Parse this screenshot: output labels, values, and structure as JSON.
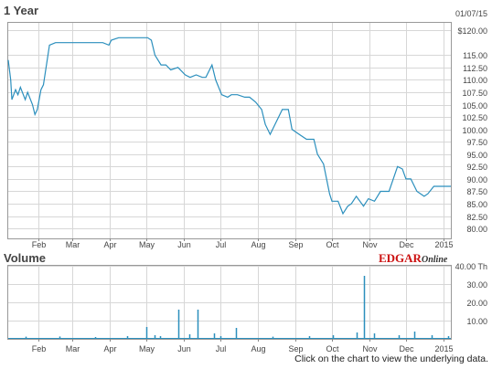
{
  "colors": {
    "line": "#2b8fbd",
    "grid": "#d7d7d7",
    "axis": "#888888",
    "text": "#444444",
    "brand": "#cc1111",
    "brand_dark": "#333333"
  },
  "footer_text": "Click on the chart to view the underlying data.",
  "brand": {
    "prefix": "EDGAR",
    "suffix": "Online"
  },
  "chart_data": [
    {
      "type": "line",
      "title": "1 Year",
      "date_label": "01/07/15",
      "x_tick_labels": [
        "Feb",
        "Mar",
        "Apr",
        "May",
        "Jun",
        "Jul",
        "Aug",
        "Sep",
        "Oct",
        "Nov",
        "Dec",
        "2015"
      ],
      "y_tick_labels": [
        "$120.00",
        "115.00",
        "112.50",
        "110.00",
        "107.50",
        "105.00",
        "102.50",
        "100.00",
        "97.50",
        "95.00",
        "92.50",
        "90.00",
        "87.50",
        "85.00",
        "82.50",
        "80.00"
      ],
      "y_ticks": [
        120,
        115,
        112.5,
        110,
        107.5,
        105,
        102.5,
        100,
        97.5,
        95,
        92.5,
        90,
        87.5,
        85,
        82.5,
        80
      ],
      "ylim": [
        78,
        121.5
      ],
      "grid": true,
      "series": [
        {
          "x": [
            "2014-01-07",
            "2014-01-09",
            "2014-01-10",
            "2014-01-13",
            "2014-01-15",
            "2014-01-17",
            "2014-01-21",
            "2014-01-23",
            "2014-01-27",
            "2014-01-29",
            "2014-01-31",
            "2014-02-03",
            "2014-02-05",
            "2014-02-10",
            "2014-02-15",
            "2014-02-20",
            "2014-02-26",
            "2014-03-05",
            "2014-03-12",
            "2014-03-19",
            "2014-03-26",
            "2014-03-31",
            "2014-04-02",
            "2014-04-08",
            "2014-04-14",
            "2014-04-21",
            "2014-04-28",
            "2014-05-02",
            "2014-05-05",
            "2014-05-08",
            "2014-05-13",
            "2014-05-17",
            "2014-05-21",
            "2014-05-27",
            "2014-06-02",
            "2014-06-06",
            "2014-06-11",
            "2014-06-16",
            "2014-06-19",
            "2014-06-24",
            "2014-06-27",
            "2014-07-02",
            "2014-07-07",
            "2014-07-10",
            "2014-07-15",
            "2014-07-21",
            "2014-07-25",
            "2014-07-30",
            "2014-08-04",
            "2014-08-07",
            "2014-08-11",
            "2014-08-15",
            "2014-08-21",
            "2014-08-26",
            "2014-08-29",
            "2014-09-04",
            "2014-09-10",
            "2014-09-16",
            "2014-09-19",
            "2014-09-24",
            "2014-09-29",
            "2014-10-01",
            "2014-10-06",
            "2014-10-10",
            "2014-10-14",
            "2014-10-17",
            "2014-10-21",
            "2014-10-27",
            "2014-10-31",
            "2014-11-05",
            "2014-11-10",
            "2014-11-17",
            "2014-11-24",
            "2014-11-28",
            "2014-12-01",
            "2014-12-05",
            "2014-12-10",
            "2014-12-16",
            "2014-12-19",
            "2014-12-24",
            "2014-12-31",
            "2015-01-07"
          ],
          "values": [
            114,
            110,
            106,
            108,
            107,
            108.5,
            106,
            107.5,
            105,
            103,
            104,
            108,
            109,
            117,
            117.5,
            117.5,
            117.5,
            117.5,
            117.5,
            117.5,
            117.5,
            117,
            118,
            118.5,
            118.5,
            118.5,
            118.5,
            118.5,
            118,
            115,
            113,
            113,
            112,
            112.5,
            111,
            110.5,
            111,
            110.5,
            110.5,
            113,
            110,
            107,
            106.5,
            107,
            107,
            106.5,
            106.5,
            105.5,
            104,
            101,
            99,
            101,
            104,
            104,
            100,
            99,
            98,
            98,
            95,
            93,
            87,
            85.5,
            85.5,
            83,
            84.5,
            85,
            86.5,
            84.5,
            86,
            85.5,
            87.5,
            87.5,
            92.5,
            92,
            90,
            90,
            87.5,
            86.5,
            87,
            88.5,
            88.5,
            88.5
          ]
        }
      ]
    },
    {
      "type": "bar",
      "title": "Volume",
      "x_tick_labels": [
        "Feb",
        "Mar",
        "Apr",
        "May",
        "Jun",
        "Jul",
        "Aug",
        "Sep",
        "Oct",
        "Nov",
        "Dec",
        "2015"
      ],
      "y_tick_labels": [
        "40.00 Th",
        "30.00",
        "20.00",
        "10.00"
      ],
      "y_ticks": [
        40,
        30,
        20,
        10
      ],
      "ylim": [
        0,
        40
      ],
      "grid": true,
      "bars": {
        "x": [
          "2014-01-21",
          "2014-02-18",
          "2014-03-20",
          "2014-04-15",
          "2014-05-01",
          "2014-05-08",
          "2014-05-12",
          "2014-05-27",
          "2014-06-05",
          "2014-06-12",
          "2014-06-26",
          "2014-07-01",
          "2014-07-14",
          "2014-08-13",
          "2014-09-12",
          "2014-10-02",
          "2014-10-21",
          "2014-10-27",
          "2014-11-05",
          "2014-11-25",
          "2014-12-08",
          "2014-12-22",
          "2015-01-05"
        ],
        "values": [
          1.2,
          1.3,
          1.0,
          1.5,
          6.5,
          2.0,
          1.5,
          16.0,
          2.5,
          16.0,
          3.0,
          1.5,
          6.0,
          1.2,
          1.5,
          2.0,
          3.5,
          34.5,
          3.0,
          2.0,
          4.0,
          2.0,
          1.5
        ]
      }
    }
  ]
}
